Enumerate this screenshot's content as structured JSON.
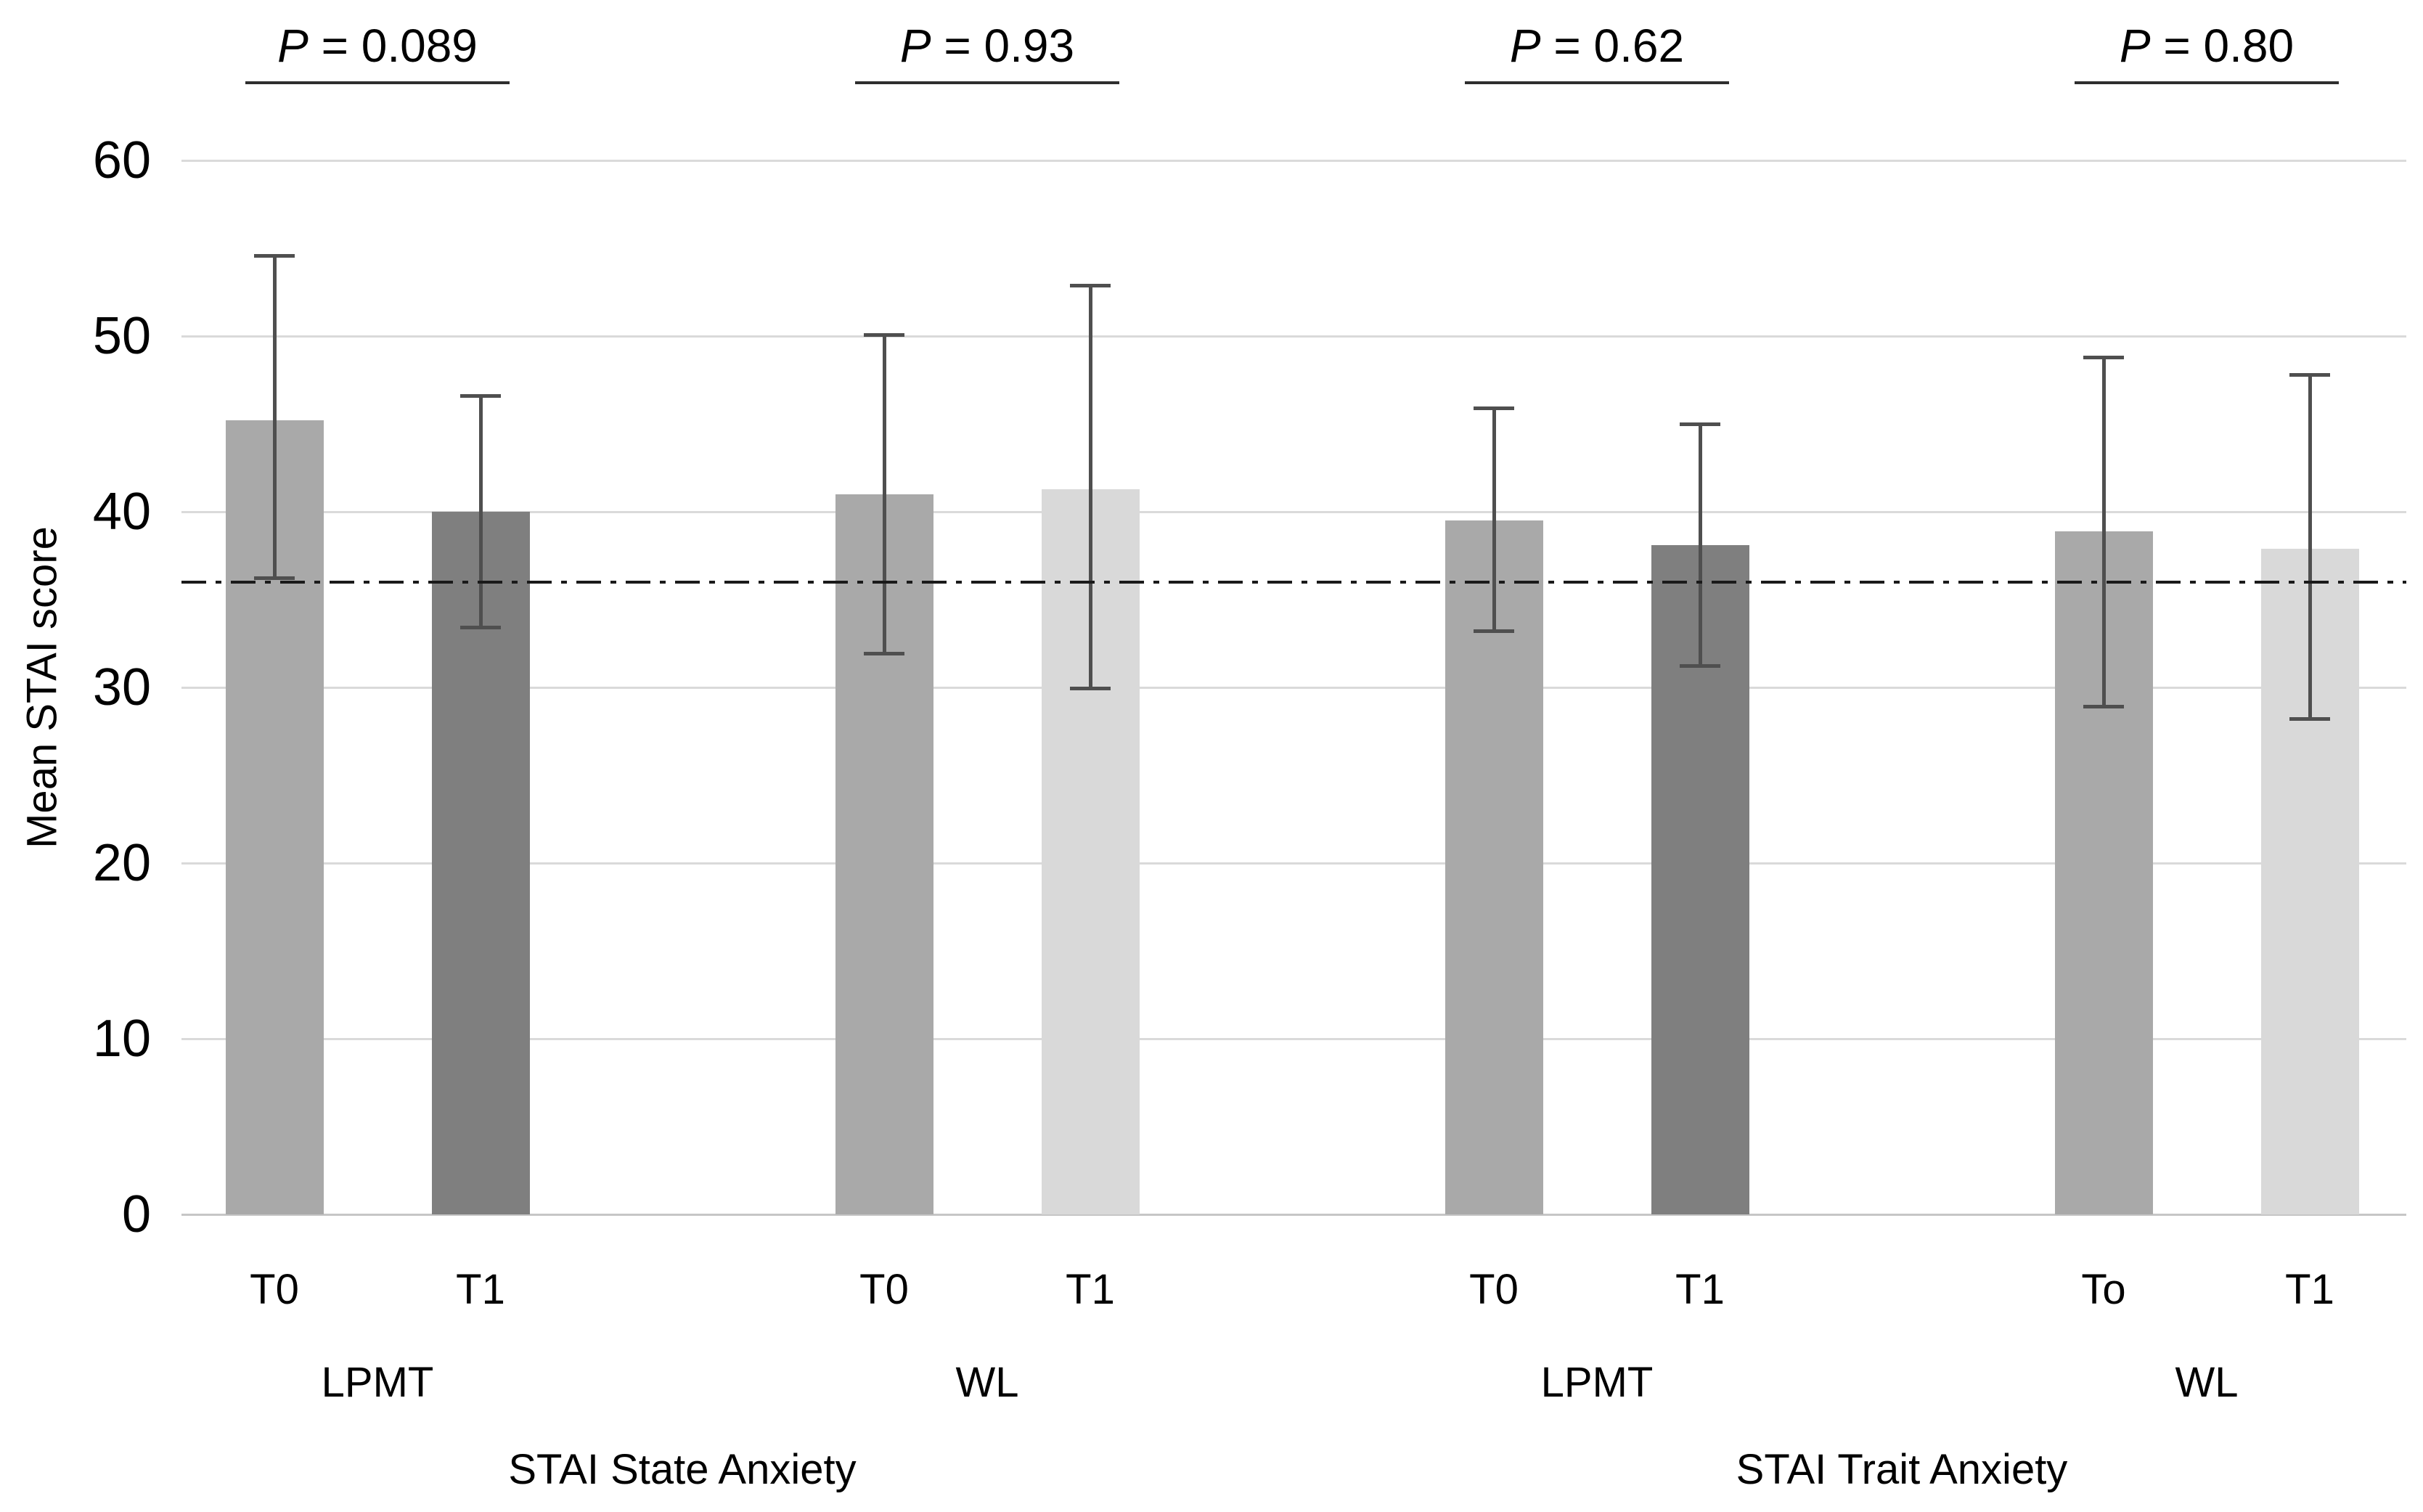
{
  "chart_data": {
    "type": "bar",
    "title": "",
    "ylabel": "Mean STAI score",
    "xlabel": "",
    "ylim": [
      0,
      60
    ],
    "yticks": [
      0,
      10,
      20,
      30,
      40,
      50,
      60
    ],
    "grid": true,
    "legend": false,
    "reference_line": {
      "value": 36,
      "style": "dash-dot"
    },
    "bar_colors": {
      "t0": "#A9A9A9",
      "t1_lpmt": "#7F7F7F",
      "t1_wl": "#D9D9D9"
    },
    "error_bar_color": "#4F4F4F",
    "sections": [
      {
        "label": "STAI State Anxiety",
        "groups": [
          {
            "label": "LPMT",
            "p_label": "P = 0.089",
            "bars": [
              {
                "tick": "T0",
                "value": 45.2,
                "err_low": 36.2,
                "err_high": 54.6,
                "color": "#A9A9A9"
              },
              {
                "tick": "T1",
                "value": 40.0,
                "err_low": 33.4,
                "err_high": 46.6,
                "color": "#7F7F7F"
              }
            ]
          },
          {
            "label": "WL",
            "p_label": "P = 0.93",
            "bars": [
              {
                "tick": "T0",
                "value": 41.0,
                "err_low": 31.9,
                "err_high": 50.1,
                "color": "#A9A9A9"
              },
              {
                "tick": "T1",
                "value": 41.3,
                "err_low": 29.9,
                "err_high": 52.9,
                "color": "#D9D9D9"
              }
            ]
          }
        ]
      },
      {
        "label": "STAI Trait Anxiety",
        "groups": [
          {
            "label": "LPMT",
            "p_label": "P = 0.62",
            "bars": [
              {
                "tick": "T0",
                "value": 39.5,
                "err_low": 33.2,
                "err_high": 45.9,
                "color": "#A9A9A9"
              },
              {
                "tick": "T1",
                "value": 38.1,
                "err_low": 31.2,
                "err_high": 45.0,
                "color": "#7F7F7F"
              }
            ]
          },
          {
            "label": "WL",
            "p_label": "P = 0.80",
            "bars": [
              {
                "tick": "To",
                "value": 38.9,
                "err_low": 28.9,
                "err_high": 48.8,
                "color": "#A9A9A9"
              },
              {
                "tick": "T1",
                "value": 37.9,
                "err_low": 28.2,
                "err_high": 47.8,
                "color": "#D9D9D9"
              }
            ]
          }
        ]
      }
    ]
  }
}
